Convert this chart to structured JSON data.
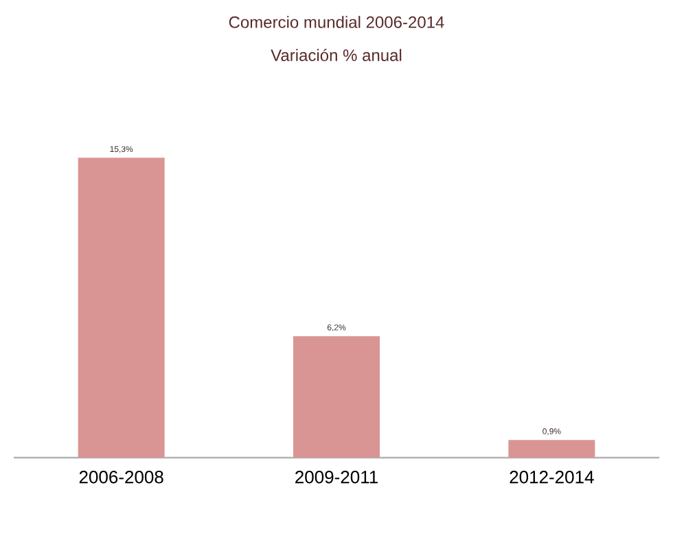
{
  "chart_data": {
    "type": "bar",
    "title": "Comercio mundial 2006-2014",
    "subtitle": "Variación % anual",
    "categories": [
      "2006-2008",
      "2009-2011",
      "2012-2014"
    ],
    "values": [
      15.3,
      6.2,
      0.9
    ],
    "value_labels": [
      "15,3%",
      "6,2%",
      "0,9%"
    ],
    "color": "#d99594"
  }
}
